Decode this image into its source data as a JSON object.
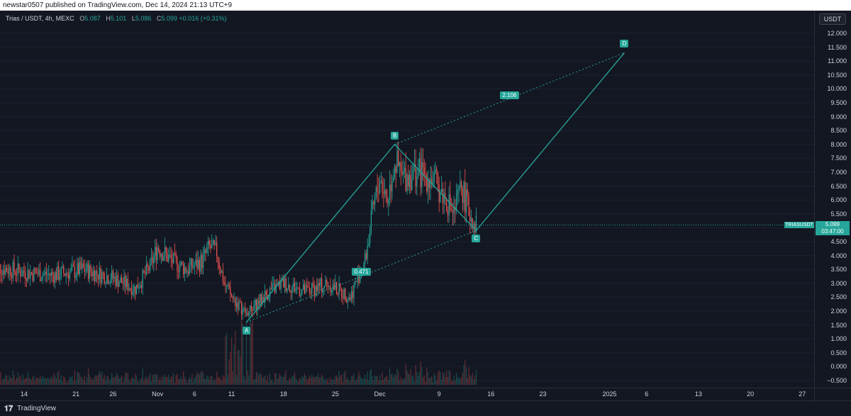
{
  "header": {
    "publish_text": "newstar0507 published on TradingView.com, Dec 14, 2024 21:13 UTC+9"
  },
  "legend": {
    "symbol": "Trias / USDT, 4h, MEXC",
    "o_label": "O",
    "o_value": "5.087",
    "h_label": "H",
    "h_value": "5.101",
    "l_label": "L",
    "l_value": "5.086",
    "c_label": "C",
    "c_value": "5.099",
    "change": "+0.016 (+0.31%)"
  },
  "price_axis": {
    "currency": "USDT",
    "ticks": [
      "12.000",
      "11.500",
      "11.000",
      "10.500",
      "10.000",
      "9.500",
      "9.000",
      "8.500",
      "8.000",
      "7.500",
      "7.000",
      "6.500",
      "6.000",
      "5.500",
      "5.000",
      "4.500",
      "4.000",
      "3.500",
      "3.000",
      "2.500",
      "2.000",
      "1.500",
      "1.000",
      "0.500",
      "0.000",
      "−0.500"
    ]
  },
  "time_axis": {
    "ticks": [
      "14",
      "21",
      "26",
      "Nov",
      "6",
      "11",
      "18",
      "25",
      "Dec",
      "9",
      "16",
      "23",
      "2025",
      "6",
      "13",
      "20",
      "27"
    ]
  },
  "last_price": {
    "symbol_badge": "TRIASUSDT",
    "value": "5.099",
    "countdown": "03:47:00"
  },
  "pattern": {
    "labels": {
      "A": "A",
      "B": "B",
      "C": "C",
      "D": "D"
    },
    "ratio_ac": "0.471",
    "ratio_bd": "2.106"
  },
  "footer": {
    "logo": "𝟏𝟕",
    "brand": "TradingView"
  },
  "colors": {
    "up": "#26a69a",
    "down": "#ef5350",
    "background": "#131722",
    "pattern_line": "#26a69a"
  },
  "chart_data": {
    "type": "candlestick",
    "title": "Trias / USDT, 4h, MEXC",
    "ylim": [
      -0.5,
      12.0
    ],
    "last": 5.099,
    "points": {
      "A": {
        "date": "2024-11-13",
        "price": 1.6
      },
      "B": {
        "date": "2024-12-03",
        "price": 8.0
      },
      "C": {
        "date": "2024-12-14",
        "price": 4.9
      },
      "D": {
        "date": "2025-01-03",
        "price": 11.3
      }
    },
    "ratios": {
      "AC": 0.471,
      "BD": 2.106
    },
    "close_path": [
      [
        "2024-10-10",
        3.6
      ],
      [
        "2024-10-14",
        3.4
      ],
      [
        "2024-10-18",
        3.3
      ],
      [
        "2024-10-22",
        3.5
      ],
      [
        "2024-10-26",
        3.2
      ],
      [
        "2024-10-29",
        2.8
      ],
      [
        "2024-10-31",
        3.6
      ],
      [
        "2024-11-01",
        4.3
      ],
      [
        "2024-11-03",
        3.8
      ],
      [
        "2024-11-05",
        3.5
      ],
      [
        "2024-11-07",
        3.8
      ],
      [
        "2024-11-08",
        4.3
      ],
      [
        "2024-11-09",
        4.1
      ],
      [
        "2024-11-10",
        3.0
      ],
      [
        "2024-11-11",
        2.5
      ],
      [
        "2024-11-13",
        1.9
      ],
      [
        "2024-11-16",
        2.7
      ],
      [
        "2024-11-18",
        3.0
      ],
      [
        "2024-11-21",
        2.7
      ],
      [
        "2024-11-24",
        3.0
      ],
      [
        "2024-11-27",
        2.5
      ],
      [
        "2024-11-28",
        3.2
      ],
      [
        "2024-11-29",
        3.8
      ],
      [
        "2024-11-30",
        5.5
      ],
      [
        "2024-12-01",
        6.8
      ],
      [
        "2024-12-02",
        6.0
      ],
      [
        "2024-12-03",
        7.4
      ],
      [
        "2024-12-04",
        6.8
      ],
      [
        "2024-12-06",
        7.0
      ],
      [
        "2024-12-08",
        6.8
      ],
      [
        "2024-12-10",
        6.0
      ],
      [
        "2024-12-11",
        5.5
      ],
      [
        "2024-12-12",
        6.5
      ],
      [
        "2024-12-13",
        5.6
      ],
      [
        "2024-12-14",
        5.099
      ]
    ]
  }
}
